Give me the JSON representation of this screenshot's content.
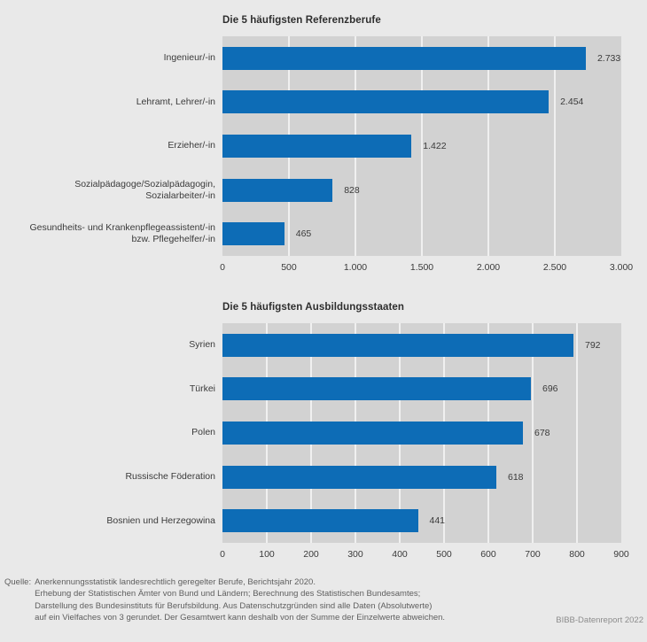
{
  "page": {
    "background": "#e9e9e9",
    "plot_background": "#d2d2d2",
    "grid_color": "#f0f0f0",
    "bar_color": "#0d6cb6",
    "text_color": "#3a3a3a",
    "footer_color": "#5e5e5e",
    "credit_color": "#8c8c8c"
  },
  "chart_data": [
    {
      "type": "bar",
      "orientation": "horizontal",
      "title": "Die 5 häufigsten Referenzberufe",
      "categories": [
        "Ingenieur/-in",
        "Lehramt, Lehrer/-in",
        "Erzieher/-in",
        "Sozialpädagoge/Sozialpädagogin,\nSozialarbeiter/-in",
        "Gesundheits- und Krankenpflegeassistent/-in\nbzw. Pflegehelfer/-in"
      ],
      "values": [
        2733,
        2454,
        1422,
        828,
        465
      ],
      "value_labels": [
        "2.733",
        "2.454",
        "1.422",
        "828",
        "465"
      ],
      "xlim": [
        0,
        3000
      ],
      "xticks": [
        0,
        500,
        1000,
        1500,
        2000,
        2500,
        3000
      ],
      "xtick_labels": [
        "0",
        "500",
        "1.000",
        "1.500",
        "2.000",
        "2.500",
        "3.000"
      ],
      "grid": true,
      "legend": false
    },
    {
      "type": "bar",
      "orientation": "horizontal",
      "title": "Die 5 häufigsten Ausbildungsstaaten",
      "categories": [
        "Syrien",
        "Türkei",
        "Polen",
        "Russische Föderation",
        "Bosnien und Herzegowina"
      ],
      "values": [
        792,
        696,
        678,
        618,
        441
      ],
      "value_labels": [
        "792",
        "696",
        "678",
        "618",
        "441"
      ],
      "xlim": [
        0,
        900
      ],
      "xticks": [
        0,
        100,
        200,
        300,
        400,
        500,
        600,
        700,
        800,
        900
      ],
      "xtick_labels": [
        "0",
        "100",
        "200",
        "300",
        "400",
        "500",
        "600",
        "700",
        "800",
        "900"
      ],
      "grid": true,
      "legend": false
    }
  ],
  "footer": {
    "source_label": "Quelle:",
    "source_lines": [
      "Anerkennungsstatistik landesrechtlich geregelter Berufe, Berichtsjahr 2020.",
      "Erhebung der Statistischen Ämter von Bund und Ländern; Berechnung des Statistischen Bundesamtes;",
      "Darstellung des Bundesinstituts für Berufsbildung. Aus Datenschutzgründen sind alle Daten (Absolutwerte)",
      "auf ein Vielfaches von 3 gerundet. Der Gesamtwert kann deshalb von der Summe der Einzelwerte abweichen."
    ],
    "credit": "BIBB-Datenreport 2022"
  }
}
